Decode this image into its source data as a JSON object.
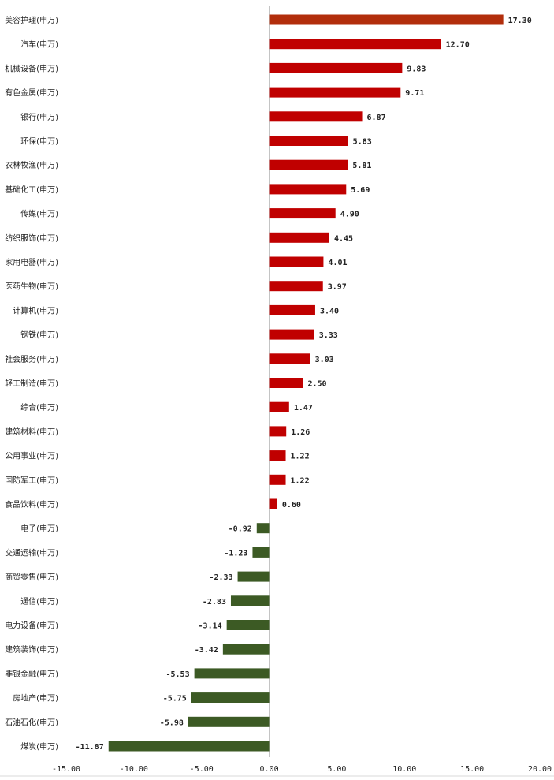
{
  "chart_data": {
    "type": "bar",
    "orientation": "horizontal",
    "categories": [
      "美容护理(申万)",
      "汽车(申万)",
      "机械设备(申万)",
      "有色金属(申万)",
      "银行(申万)",
      "环保(申万)",
      "农林牧渔(申万)",
      "基础化工(申万)",
      "传媒(申万)",
      "纺织服饰(申万)",
      "家用电器(申万)",
      "医药生物(申万)",
      "计算机(申万)",
      "钢铁(申万)",
      "社会服务(申万)",
      "轻工制造(申万)",
      "综合(申万)",
      "建筑材料(申万)",
      "公用事业(申万)",
      "国防军工(申万)",
      "食品饮料(申万)",
      "电子(申万)",
      "交通运输(申万)",
      "商贸零售(申万)",
      "通信(申万)",
      "电力设备(申万)",
      "建筑装饰(申万)",
      "非银金融(申万)",
      "房地产(申万)",
      "石油石化(申万)",
      "煤炭(申万)"
    ],
    "values": [
      17.3,
      12.7,
      9.83,
      9.71,
      6.87,
      5.83,
      5.81,
      5.69,
      4.9,
      4.45,
      4.01,
      3.97,
      3.4,
      3.33,
      3.03,
      2.5,
      1.47,
      1.26,
      1.22,
      1.22,
      0.6,
      -0.92,
      -1.23,
      -2.33,
      -2.83,
      -3.14,
      -3.42,
      -5.53,
      -5.75,
      -5.98,
      -11.87
    ],
    "value_labels": [
      "17.30",
      "12.70",
      "9.83",
      "9.71",
      "6.87",
      "5.83",
      "5.81",
      "5.69",
      "4.90",
      "4.45",
      "4.01",
      "3.97",
      "3.40",
      "3.33",
      "3.03",
      "2.50",
      "1.47",
      "1.26",
      "1.22",
      "1.22",
      "0.60",
      "-0.92",
      "-1.23",
      "-2.33",
      "-2.83",
      "-3.14",
      "-3.42",
      "-5.53",
      "-5.75",
      "-5.98",
      "-11.87"
    ],
    "xlim": [
      -15,
      20
    ],
    "x_ticks": [
      -15,
      -10,
      -5,
      0,
      5,
      10,
      15,
      20
    ],
    "x_tick_labels": [
      "-15.00",
      "-10.00",
      "-5.00",
      "0.00",
      "5.00",
      "10.00",
      "15.00",
      "20.00"
    ],
    "title": "",
    "xlabel": "",
    "ylabel": "",
    "grid": false,
    "legend": "none",
    "colors": {
      "top": "#B22E0C",
      "positive": "#C00000",
      "negative": "#3C5A24",
      "axis": "#BFBFBF"
    }
  }
}
